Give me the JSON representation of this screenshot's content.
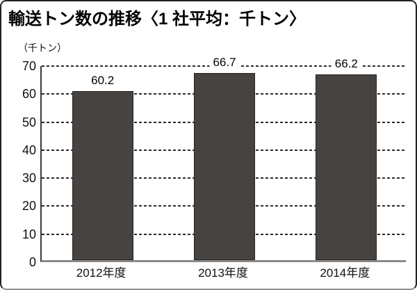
{
  "header": {
    "title": "輸送トン数の推移〈1 社平均：千トン〉",
    "unit_label": "（千トン）"
  },
  "chart_data": {
    "type": "bar",
    "title": "輸送トン数の推移〈1 社平均：千トン〉",
    "ylabel": "（千トン）",
    "xlabel": "",
    "categories": [
      "2012年度",
      "2013年度",
      "2014年度"
    ],
    "values": [
      60.2,
      66.7,
      66.2
    ],
    "value_labels": [
      "60.2",
      "66.7",
      "66.2"
    ],
    "ylim": [
      0,
      70
    ],
    "yticks": [
      0,
      10,
      20,
      30,
      40,
      50,
      60,
      70
    ],
    "grid": "horizontal-dashed",
    "legend": "none",
    "bar_color": "#474341",
    "baseline_color": "#8a8a8a",
    "gridline_color": "#2a2a2a"
  }
}
